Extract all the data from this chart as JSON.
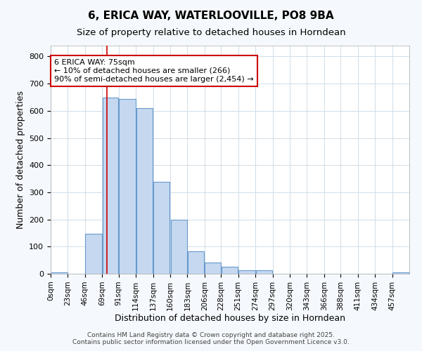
{
  "title_line1": "6, ERICA WAY, WATERLOOVILLE, PO8 9BA",
  "title_line2": "Size of property relative to detached houses in Horndean",
  "xlabel": "Distribution of detached houses by size in Horndean",
  "ylabel": "Number of detached properties",
  "bin_labels": [
    "0sqm",
    "23sqm",
    "46sqm",
    "69sqm",
    "91sqm",
    "114sqm",
    "137sqm",
    "160sqm",
    "183sqm",
    "206sqm",
    "228sqm",
    "251sqm",
    "274sqm",
    "297sqm",
    "320sqm",
    "343sqm",
    "366sqm",
    "388sqm",
    "411sqm",
    "434sqm",
    "457sqm"
  ],
  "bin_edges": [
    0,
    23,
    46,
    69,
    91,
    114,
    137,
    160,
    183,
    206,
    228,
    251,
    274,
    297,
    320,
    343,
    366,
    388,
    411,
    434,
    457,
    480
  ],
  "bar_heights": [
    5,
    0,
    148,
    648,
    643,
    610,
    338,
    200,
    83,
    42,
    27,
    12,
    12,
    0,
    0,
    0,
    0,
    0,
    0,
    0,
    5
  ],
  "bar_color": "#c5d8f0",
  "bar_edgecolor": "#6699cc",
  "bar_linewidth": 0.8,
  "red_line_x": 75,
  "red_line_color": "#cc0000",
  "ylim": [
    0,
    840
  ],
  "yticks": [
    0,
    100,
    200,
    300,
    400,
    500,
    600,
    700,
    800
  ],
  "annotation_text": "6 ERICA WAY: 75sqm\n← 10% of detached houses are smaller (266)\n90% of semi-detached houses are larger (2,454) →",
  "annotation_box_facecolor": "#ffffff",
  "annotation_box_edgecolor": "#cc0000",
  "grid_color": "#d0dde8",
  "background_color": "#f5f8fc",
  "plot_bg_color": "#ffffff",
  "footer_line1": "Contains HM Land Registry data © Crown copyright and database right 2025.",
  "footer_line2": "Contains public sector information licensed under the Open Government Licence v3.0.",
  "title_fontsize": 11,
  "subtitle_fontsize": 9.5,
  "axis_label_fontsize": 9,
  "tick_fontsize": 7.5,
  "annotation_fontsize": 8,
  "footer_fontsize": 6.5
}
